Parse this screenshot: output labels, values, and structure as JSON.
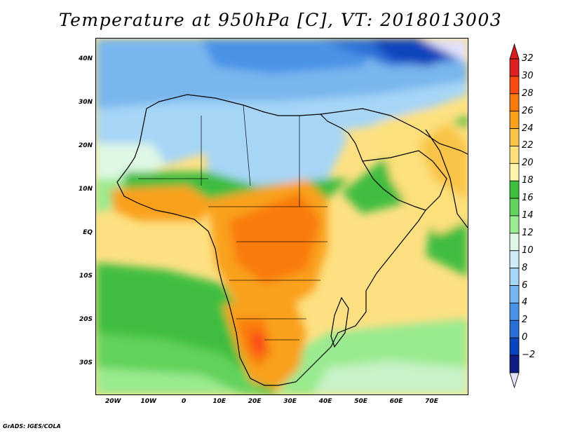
{
  "title": "Temperature at 950hPa [C], VT: 2018013003",
  "credit": "GrADS: IGES/COLA",
  "map": {
    "region": "Africa and surrounding oceans",
    "lon_range": [
      -25,
      80
    ],
    "lat_range": [
      -37,
      45
    ],
    "lat_ticks": [
      {
        "value": 40,
        "label": "40N"
      },
      {
        "value": 30,
        "label": "30N"
      },
      {
        "value": 20,
        "label": "20N"
      },
      {
        "value": 10,
        "label": "10N"
      },
      {
        "value": 0,
        "label": "EQ"
      },
      {
        "value": -10,
        "label": "10S"
      },
      {
        "value": -20,
        "label": "20S"
      },
      {
        "value": -30,
        "label": "30S"
      }
    ],
    "lon_ticks": [
      {
        "value": -20,
        "label": "20W"
      },
      {
        "value": -10,
        "label": "10W"
      },
      {
        "value": 0,
        "label": "0"
      },
      {
        "value": 10,
        "label": "10E"
      },
      {
        "value": 20,
        "label": "20E"
      },
      {
        "value": 30,
        "label": "30E"
      },
      {
        "value": 40,
        "label": "40E"
      },
      {
        "value": 50,
        "label": "50E"
      },
      {
        "value": 60,
        "label": "60E"
      },
      {
        "value": 70,
        "label": "70E"
      }
    ]
  },
  "colorbar": {
    "levels": [
      "32",
      "30",
      "28",
      "26",
      "24",
      "22",
      "20",
      "18",
      "16",
      "14",
      "12",
      "10",
      "8",
      "6",
      "4",
      "2",
      "0",
      "−2"
    ],
    "colors_top_to_bottom": [
      "#dd2020",
      "#fb4a12",
      "#f97a0a",
      "#f9a01c",
      "#f9c447",
      "#fce07c",
      "#fff5ad",
      "#3fbd3f",
      "#64d35c",
      "#9beb92",
      "#dff8e4",
      "#ccecf8",
      "#a6d5f6",
      "#78b6ee",
      "#4a92e6",
      "#2a6fd6",
      "#0a44bd",
      "#0d1d83"
    ],
    "top_triangle_color": "#d61e1e",
    "bottom_triangle_color": "#e1e1fa"
  }
}
